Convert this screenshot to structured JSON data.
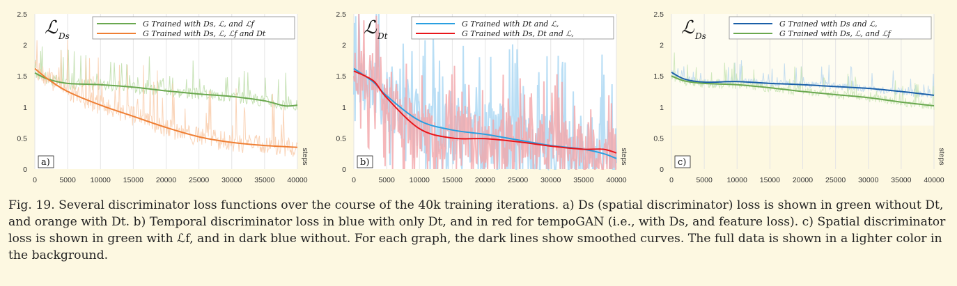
{
  "caption": "Fig. 19.  Several discriminator loss functions over the course of the 40k training iterations. a) Ds (spatial discriminator) loss is shown in green without Dt, and orange with Dt. b) Temporal discriminator loss in blue with only Dt, and in red for tempoGAN (i.e., with Ds, and feature loss). c) Spatial discriminator loss is shown in green with ℒf, and in dark blue without. For each graph, the dark lines show smoothed curves. The full data is shown in a lighter color in the background.",
  "chart_data": [
    {
      "type": "line",
      "panel_label": "a)",
      "symbol": "ℒ",
      "symbol_sub": "Ds",
      "x_axis_label": "steps",
      "xlim": [
        0,
        40000
      ],
      "ylim": [
        0,
        2.5
      ],
      "x_ticks": [
        "0",
        "5000",
        "10000",
        "15000",
        "20000",
        "25000",
        "30000",
        "35000",
        "40000"
      ],
      "y_ticks": [
        "0",
        "0.5",
        "1",
        "1.5",
        "2",
        "2.5"
      ],
      "legend_position": "top-right",
      "series": [
        {
          "name": "G Trained with Ds, ℒ, and ℒf",
          "color": "#6aa84f",
          "light": "#b9dba4",
          "x": [
            0,
            2000,
            5000,
            10000,
            15000,
            20000,
            25000,
            30000,
            35000,
            38000,
            40000
          ],
          "y": [
            1.55,
            1.45,
            1.38,
            1.36,
            1.32,
            1.26,
            1.21,
            1.17,
            1.1,
            1.02,
            1.03
          ]
        },
        {
          "name": "G Trained with Ds, ℒ, ℒf and Dt",
          "color": "#ef7f34",
          "light": "#f9c9a6",
          "x": [
            0,
            2000,
            5000,
            10000,
            15000,
            20000,
            25000,
            30000,
            35000,
            40000
          ],
          "y": [
            1.62,
            1.45,
            1.25,
            1.03,
            0.85,
            0.67,
            0.52,
            0.43,
            0.38,
            0.35
          ]
        }
      ]
    },
    {
      "type": "line",
      "panel_label": "b)",
      "symbol": "ℒ",
      "symbol_sub": "Dt",
      "x_axis_label": "steps",
      "xlim": [
        0,
        40000
      ],
      "ylim": [
        0,
        2.5
      ],
      "x_ticks": [
        "0",
        "5000",
        "10000",
        "15000",
        "20000",
        "25000",
        "30000",
        "35000",
        "40000"
      ],
      "y_ticks": [
        "0",
        "0.5",
        "1",
        "1.5",
        "2",
        "2.5"
      ],
      "legend_position": "top-right",
      "series": [
        {
          "name": "G Trained with Dt and ℒ,",
          "color": "#2a9fe0",
          "light": "#a8d6f2",
          "x": [
            0,
            3000,
            5000,
            10000,
            15000,
            20000,
            25000,
            30000,
            35000,
            38000,
            40000
          ],
          "y": [
            1.62,
            1.4,
            1.18,
            0.78,
            0.63,
            0.56,
            0.47,
            0.38,
            0.32,
            0.25,
            0.17
          ]
        },
        {
          "name": "G Trained with Ds, Dt and ℒ,",
          "color": "#e8161b",
          "light": "#f3a5a9",
          "x": [
            0,
            3000,
            5000,
            10000,
            15000,
            20000,
            25000,
            30000,
            35000,
            38000,
            40000
          ],
          "y": [
            1.58,
            1.42,
            1.15,
            0.65,
            0.5,
            0.49,
            0.44,
            0.37,
            0.32,
            0.32,
            0.26
          ]
        }
      ]
    },
    {
      "type": "line",
      "panel_label": "c)",
      "symbol": "ℒ",
      "symbol_sub": "Ds",
      "x_axis_label": "steps",
      "xlim": [
        0,
        40000
      ],
      "ylim": [
        0,
        2.5
      ],
      "x_ticks": [
        "0",
        "5000",
        "10000",
        "15000",
        "20000",
        "25000",
        "30000",
        "35000",
        "40000"
      ],
      "y_ticks": [
        "0",
        "0.5",
        "1",
        "1.5",
        "2",
        "2.5"
      ],
      "legend_position": "top-right",
      "series": [
        {
          "name": "G Trained with Ds and ℒ,",
          "color": "#1a5fa8",
          "light": "#b5d4ef",
          "x": [
            0,
            2000,
            5000,
            10000,
            15000,
            20000,
            25000,
            30000,
            35000,
            40000
          ],
          "y": [
            1.56,
            1.45,
            1.4,
            1.41,
            1.38,
            1.36,
            1.33,
            1.3,
            1.25,
            1.19
          ]
        },
        {
          "name": "G Trained with Ds, ℒ, and ℒf",
          "color": "#6aa84f",
          "light": "#c5e3b2",
          "x": [
            0,
            2000,
            5000,
            10000,
            15000,
            20000,
            25000,
            30000,
            35000,
            40000
          ],
          "y": [
            1.5,
            1.42,
            1.38,
            1.36,
            1.31,
            1.25,
            1.2,
            1.15,
            1.08,
            1.02
          ]
        }
      ]
    }
  ]
}
